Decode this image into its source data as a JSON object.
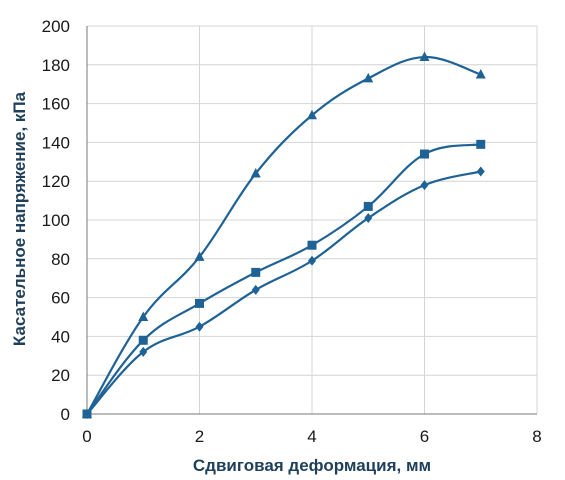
{
  "chart_data": {
    "type": "line",
    "xlabel": "Сдвиговая деформация, мм",
    "ylabel": "Касательное напряжение, кПа",
    "xlim": [
      0,
      8
    ],
    "ylim": [
      0,
      200
    ],
    "xticks": [
      0,
      2,
      4,
      6,
      8
    ],
    "yticks": [
      0,
      20,
      40,
      60,
      80,
      100,
      120,
      140,
      160,
      180,
      200
    ],
    "grid": true,
    "line_color": "#1f6396",
    "series": [
      {
        "marker": "triangle",
        "x": [
          0,
          1,
          2,
          3,
          4,
          5,
          6,
          7
        ],
        "y": [
          0,
          50,
          81,
          124,
          154,
          173,
          184,
          175
        ]
      },
      {
        "marker": "square",
        "x": [
          0,
          1,
          2,
          3,
          4,
          5,
          6,
          7
        ],
        "y": [
          0,
          38,
          57,
          73,
          87,
          107,
          134,
          139
        ]
      },
      {
        "marker": "diamond",
        "x": [
          0,
          1,
          2,
          3,
          4,
          5,
          6,
          7
        ],
        "y": [
          0,
          32,
          45,
          64,
          79,
          101,
          118,
          125
        ]
      }
    ]
  }
}
